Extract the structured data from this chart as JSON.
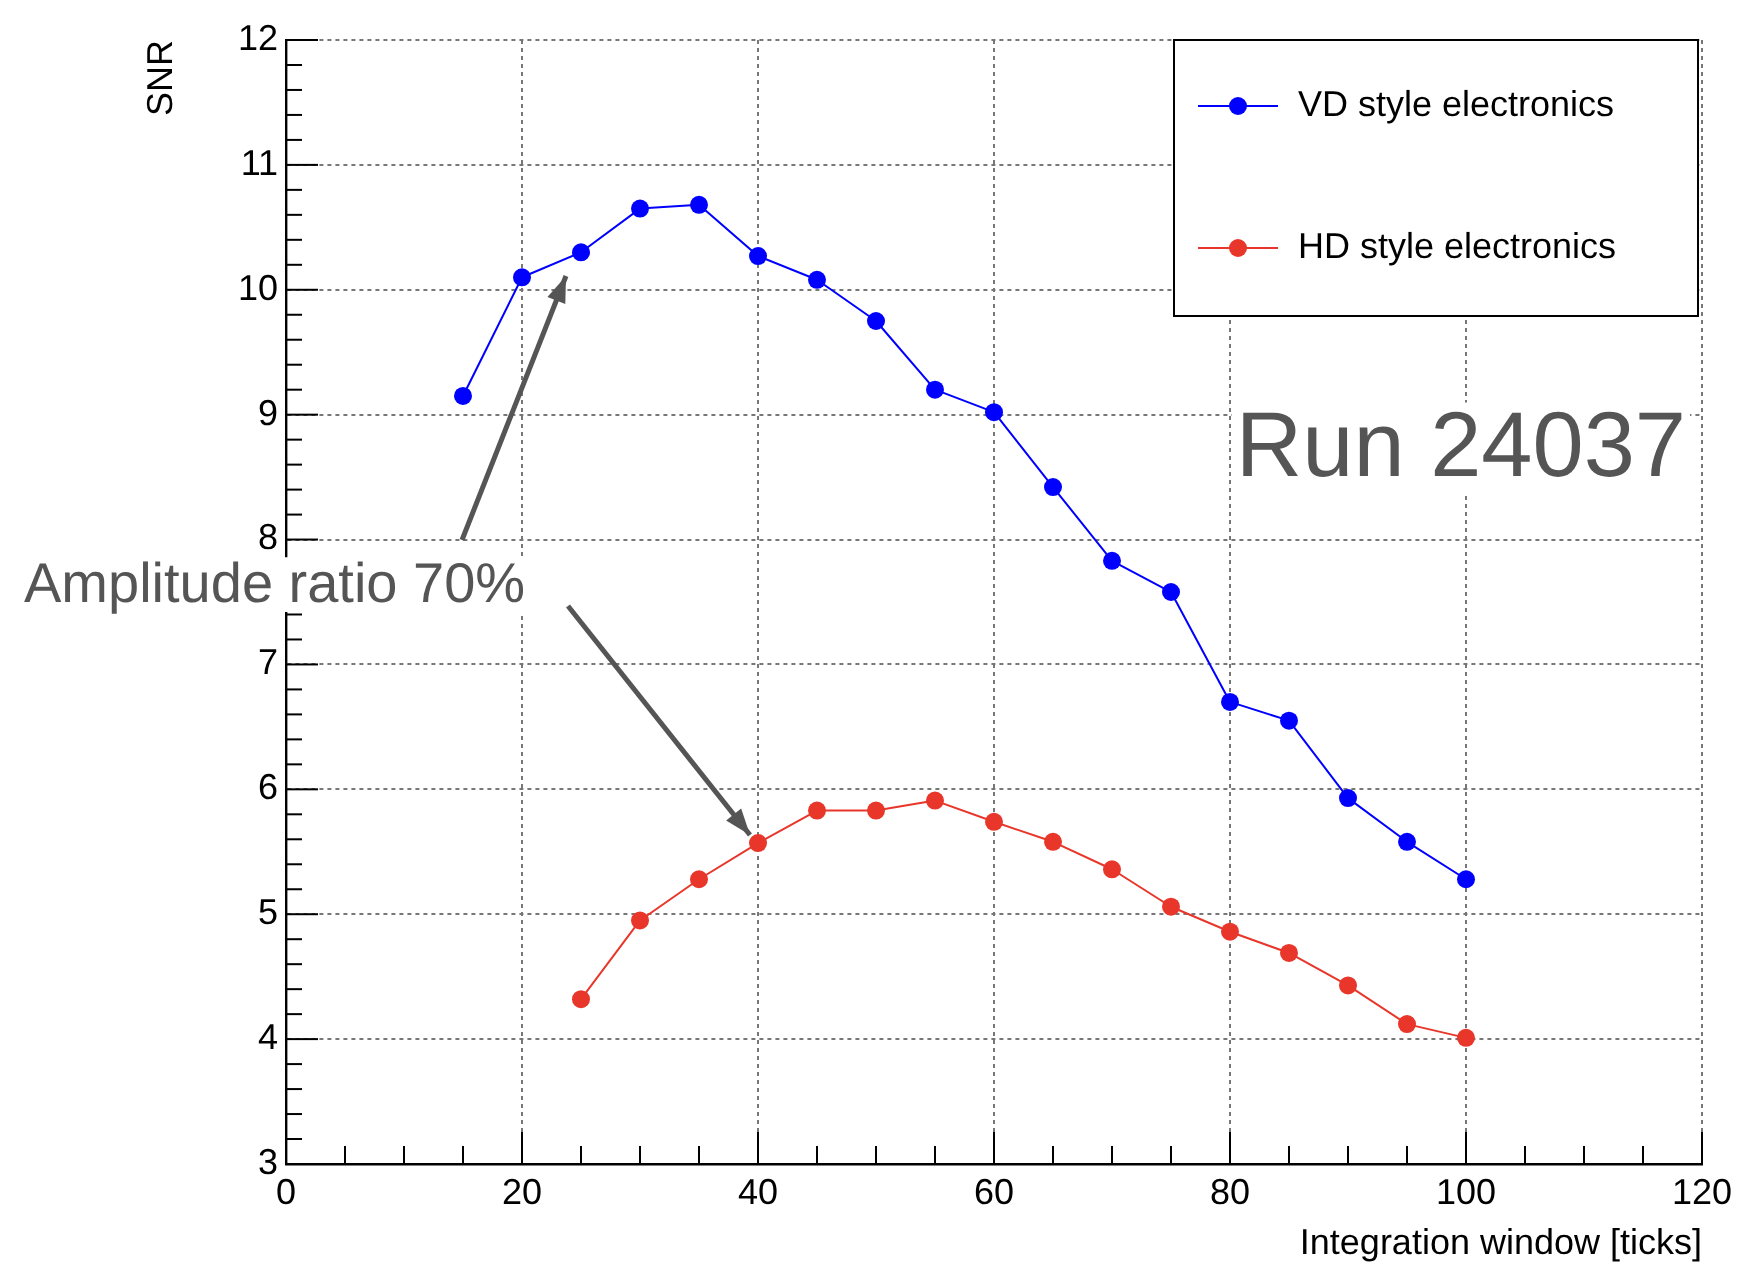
{
  "chart_data": {
    "type": "line",
    "xlabel": "Integration window [ticks]",
    "ylabel": "SNR",
    "x": [
      15,
      20,
      25,
      30,
      35,
      40,
      45,
      50,
      55,
      60,
      65,
      70,
      75,
      80,
      85,
      90,
      95,
      100
    ],
    "series": [
      {
        "name": "VD style electronics",
        "color": "#0000ff",
        "values": [
          9.15,
          10.1,
          10.3,
          10.65,
          10.68,
          10.27,
          10.08,
          9.75,
          9.2,
          9.02,
          8.42,
          7.83,
          7.58,
          6.7,
          6.55,
          5.93,
          5.58,
          5.28
        ]
      },
      {
        "name": "HD style electronics",
        "color": "#e8362a",
        "x": [
          25,
          30,
          35,
          40,
          45,
          50,
          55,
          60,
          65,
          70,
          75,
          80,
          85,
          90,
          95,
          100
        ],
        "values": [
          4.32,
          4.95,
          5.28,
          5.57,
          5.83,
          5.83,
          5.91,
          5.74,
          5.58,
          5.36,
          5.06,
          4.86,
          4.69,
          4.43,
          4.12,
          4.01
        ]
      }
    ],
    "xlim": [
      0,
      120
    ],
    "ylim": [
      3,
      12
    ],
    "xticks": [
      0,
      {
        "value": 5,
        "label": null
      },
      {
        "value": 10,
        "label": null
      },
      {
        "value": 15,
        "label": null
      },
      20,
      {
        "value": 25,
        "label": null
      },
      {
        "value": 30,
        "label": null
      },
      {
        "value": 35,
        "label": null
      },
      40,
      {
        "value": 45,
        "label": null
      },
      {
        "value": 50,
        "label": null
      },
      {
        "value": 55,
        "label": null
      },
      60,
      {
        "value": 65,
        "label": null
      },
      {
        "value": 70,
        "label": null
      },
      {
        "value": 75,
        "label": null
      },
      80,
      {
        "value": 85,
        "label": null
      },
      {
        "value": 90,
        "label": null
      },
      {
        "value": 95,
        "label": null
      },
      100,
      {
        "value": 105,
        "label": null
      },
      {
        "value": 110,
        "label": null
      },
      {
        "value": 115,
        "label": null
      },
      120
    ],
    "yticks": [
      3,
      4,
      5,
      6,
      7,
      8,
      9,
      10,
      11,
      12
    ],
    "annotations": [
      "Run 24037",
      {
        "text": "Amplitude ratio 70%",
        "x": 40,
        "y": 5.57
      }
    ],
    "grid": true,
    "legend": "top right",
    "marker": "circle",
    "line_style": "solid"
  }
}
